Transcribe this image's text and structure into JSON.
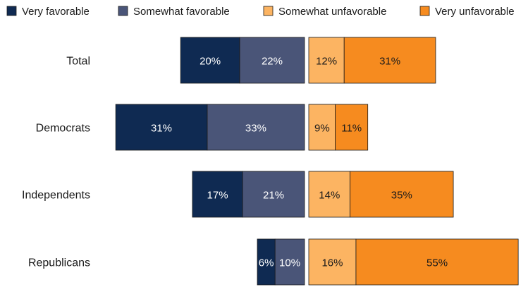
{
  "chart_data": {
    "type": "bar",
    "orientation": "horizontal",
    "stacking": "diverging",
    "legend_position": "top",
    "grid": false,
    "categories": [
      "Total",
      "Democrats",
      "Independents",
      "Republicans"
    ],
    "series": [
      {
        "name": "Very favorable",
        "side": "favorable",
        "color": "#0f2a52",
        "label_color": "#ffffff",
        "values": [
          20,
          31,
          17,
          6
        ],
        "labels": [
          "20%",
          "31%",
          "17%",
          "6%"
        ]
      },
      {
        "name": "Somewhat favorable",
        "side": "favorable",
        "color": "#4a5578",
        "label_color": "#ffffff",
        "values": [
          22,
          33,
          21,
          10
        ],
        "labels": [
          "22%",
          "33%",
          "21%",
          "10%"
        ]
      },
      {
        "name": "Somewhat unfavorable",
        "side": "unfavorable",
        "color": "#fcb462",
        "label_color": "#1a1a1a",
        "values": [
          12,
          9,
          14,
          16
        ],
        "labels": [
          "12%",
          "9%",
          "14%",
          "16%"
        ]
      },
      {
        "name": "Very unfavorable",
        "side": "unfavorable",
        "color": "#f68b1f",
        "label_color": "#1a1a1a",
        "values": [
          31,
          11,
          35,
          55
        ],
        "labels": [
          "31%",
          "11%",
          "35%",
          "55%"
        ]
      }
    ]
  }
}
